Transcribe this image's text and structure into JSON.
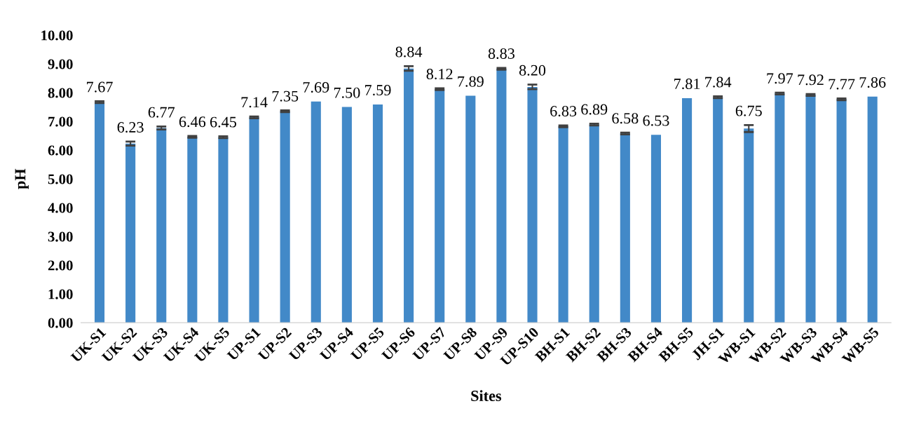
{
  "chart_data": {
    "type": "bar",
    "xlabel": "Sites",
    "ylabel": "pH",
    "categories": [
      "UK-S1",
      "UK-S2",
      "UK-S3",
      "UK-S4",
      "UK-S5",
      "UP-S1",
      "UP-S2",
      "UP-S3",
      "UP-S4",
      "UP-S5",
      "UP-S6",
      "UP-S7",
      "UP-S8",
      "UP-S9",
      "UP-S10",
      "BH-S1",
      "BH-S2",
      "BH-S3",
      "BH-S4",
      "BH-S5",
      "JH-S1",
      "WB-S1",
      "WB-S2",
      "WB-S3",
      "WB-S4",
      "WB-S5"
    ],
    "values": [
      7.67,
      6.23,
      6.77,
      6.46,
      6.45,
      7.14,
      7.35,
      7.69,
      7.5,
      7.59,
      8.84,
      8.12,
      7.89,
      8.83,
      8.2,
      6.83,
      6.89,
      6.58,
      6.53,
      7.81,
      7.84,
      6.75,
      7.97,
      7.92,
      7.77,
      7.86
    ],
    "errors": [
      0.03,
      0.07,
      0.05,
      0.03,
      0.03,
      0.03,
      0.03,
      null,
      null,
      null,
      0.08,
      0.03,
      null,
      0.03,
      0.08,
      0.03,
      0.03,
      0.03,
      null,
      null,
      0.03,
      0.12,
      0.03,
      0.03,
      0.03,
      null
    ],
    "color": "#4289c8",
    "ylim": [
      0,
      10
    ],
    "yticks": [
      {
        "value": 0,
        "label": "0.00"
      },
      {
        "value": 1,
        "label": "1.00"
      },
      {
        "value": 2,
        "label": "2.00"
      },
      {
        "value": 3,
        "label": "3.00"
      },
      {
        "value": 4,
        "label": "4.00"
      },
      {
        "value": 5,
        "label": "5.00"
      },
      {
        "value": 6,
        "label": "6.00"
      },
      {
        "value": 7,
        "label": "7.00"
      },
      {
        "value": 8,
        "label": "8.00"
      },
      {
        "value": 9,
        "label": "9.00"
      },
      {
        "value": 10,
        "label": "10.00"
      }
    ],
    "value_labels": [
      "7.67",
      "6.23",
      "6.77",
      "6.46",
      "6.45",
      "7.14",
      "7.35",
      "7.69",
      "7.50",
      "7.59",
      "8.84",
      "8.12",
      "7.89",
      "8.83",
      "8.20",
      "6.83",
      "6.89",
      "6.58",
      "6.53",
      "7.81",
      "7.84",
      "6.75",
      "7.97",
      "7.92",
      "7.77",
      "7.86"
    ]
  }
}
